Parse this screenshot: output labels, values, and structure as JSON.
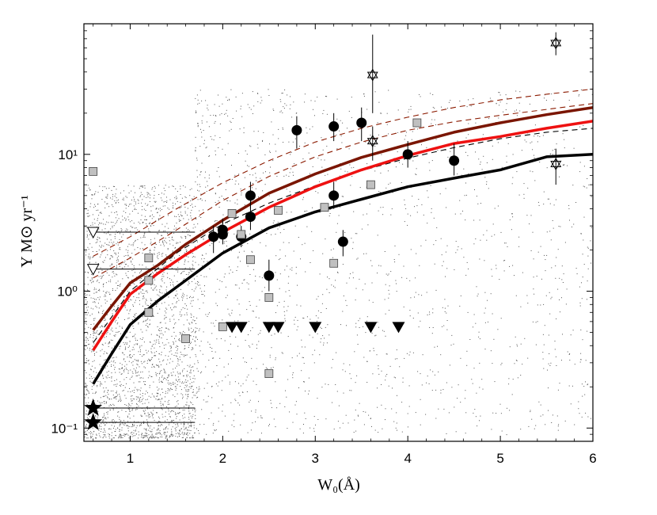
{
  "chart_data": {
    "type": "scatter",
    "title": "",
    "xlabel": "W₀(Å)",
    "ylabel": "Υ M⊙ yr⁻¹",
    "xlim": [
      0.5,
      6
    ],
    "ylim": [
      0.08,
      90
    ],
    "yscale": "log",
    "grid": false,
    "legend": "none",
    "x_ticks": [
      1,
      2,
      3,
      4,
      5,
      6
    ],
    "x_tick_labels": [
      "1",
      "2",
      "3",
      "4",
      "5",
      "6"
    ],
    "y_ticks": [
      0.1,
      1,
      10
    ],
    "y_tick_labels": [
      "10⁻¹",
      "10⁰",
      "10¹"
    ],
    "background_points": {
      "style": "gray-dots",
      "x_range": [
        0.5,
        6
      ],
      "y_range": [
        0.08,
        30
      ],
      "dense_region_x": [
        0.5,
        1.7
      ]
    },
    "series": [
      {
        "style": "black-circles-errorbars",
        "color": "#000000",
        "points": [
          {
            "x": 1.9,
            "y": 2.5,
            "ylo": 1.9,
            "yhi": 3.0
          },
          {
            "x": 2.0,
            "y": 2.6,
            "ylo": 2.2,
            "yhi": 3.2
          },
          {
            "x": 2.0,
            "y": 2.8,
            "ylo": 2.4,
            "yhi": 3.4
          },
          {
            "x": 2.2,
            "y": 2.5,
            "ylo": 2.1,
            "yhi": 3.0
          },
          {
            "x": 2.3,
            "y": 5.0,
            "ylo": 4.0,
            "yhi": 6.3
          },
          {
            "x": 2.3,
            "y": 3.5,
            "ylo": 2.8,
            "yhi": 4.5
          },
          {
            "x": 2.5,
            "y": 1.3,
            "ylo": 1.0,
            "yhi": 1.7
          },
          {
            "x": 2.8,
            "y": 15,
            "ylo": 11,
            "yhi": 19
          },
          {
            "x": 3.2,
            "y": 16,
            "ylo": 12.5,
            "yhi": 20
          },
          {
            "x": 3.2,
            "y": 5.0,
            "ylo": 4.0,
            "yhi": 6.3
          },
          {
            "x": 3.3,
            "y": 2.3,
            "ylo": 1.8,
            "yhi": 2.8
          },
          {
            "x": 3.5,
            "y": 17,
            "ylo": 12.5,
            "yhi": 22
          },
          {
            "x": 4.0,
            "y": 10,
            "ylo": 8,
            "yhi": 12.5
          },
          {
            "x": 4.5,
            "y": 9,
            "ylo": 7,
            "yhi": 12
          }
        ]
      },
      {
        "style": "gray-squares",
        "color": "#c0c0c0",
        "points": [
          {
            "x": 0.6,
            "y": 7.5
          },
          {
            "x": 1.2,
            "y": 1.75
          },
          {
            "x": 1.2,
            "y": 1.2
          },
          {
            "x": 1.2,
            "y": 0.7
          },
          {
            "x": 1.6,
            "y": 0.45
          },
          {
            "x": 2.0,
            "y": 0.55
          },
          {
            "x": 2.1,
            "y": 3.7
          },
          {
            "x": 2.2,
            "y": 2.6
          },
          {
            "x": 2.3,
            "y": 1.7
          },
          {
            "x": 2.5,
            "y": 0.9
          },
          {
            "x": 2.5,
            "y": 0.25
          },
          {
            "x": 2.6,
            "y": 3.9
          },
          {
            "x": 3.1,
            "y": 4.1
          },
          {
            "x": 3.2,
            "y": 1.6
          },
          {
            "x": 3.6,
            "y": 6.0
          },
          {
            "x": 4.1,
            "y": 17
          }
        ]
      },
      {
        "style": "open-down-triangles-with-range",
        "color": "#000000",
        "points": [
          {
            "x": 0.6,
            "y": 2.7,
            "x_end": 1.7
          },
          {
            "x": 0.6,
            "y": 1.45,
            "x_end": 1.7
          }
        ]
      },
      {
        "style": "filled-down-triangles",
        "color": "#000000",
        "points": [
          {
            "x": 2.1,
            "y": 0.55
          },
          {
            "x": 2.2,
            "y": 0.55
          },
          {
            "x": 2.5,
            "y": 0.55
          },
          {
            "x": 2.6,
            "y": 0.55
          },
          {
            "x": 3.0,
            "y": 0.55
          },
          {
            "x": 3.6,
            "y": 0.55
          },
          {
            "x": 3.9,
            "y": 0.55
          }
        ]
      },
      {
        "style": "filled-stars-with-range",
        "color": "#000000",
        "points": [
          {
            "x": 0.6,
            "y": 0.14,
            "x_end": 1.7
          },
          {
            "x": 0.6,
            "y": 0.11,
            "x_end": 1.7
          }
        ]
      },
      {
        "style": "open-hexagram-errorbars",
        "color": "#000000",
        "points": [
          {
            "x": 3.62,
            "y": 38,
            "ylo": 20,
            "yhi": 75
          },
          {
            "x": 3.62,
            "y": 12.5,
            "ylo": 9,
            "yhi": 16
          },
          {
            "x": 5.6,
            "y": 65,
            "ylo": 53,
            "yhi": 78
          },
          {
            "x": 5.6,
            "y": 8.5,
            "ylo": 6,
            "yhi": 11
          }
        ]
      }
    ],
    "curves": [
      {
        "style": "thick-solid",
        "color": "#000000",
        "width": 3.5,
        "points": [
          [
            0.6,
            0.21
          ],
          [
            0.8,
            0.35
          ],
          [
            1.0,
            0.57
          ],
          [
            1.3,
            0.85
          ],
          [
            1.6,
            1.2
          ],
          [
            2.0,
            1.9
          ],
          [
            2.5,
            2.9
          ],
          [
            3.0,
            3.8
          ],
          [
            3.5,
            4.7
          ],
          [
            4.0,
            5.8
          ],
          [
            4.5,
            6.7
          ],
          [
            5.0,
            7.7
          ],
          [
            5.5,
            9.6
          ],
          [
            6.0,
            10
          ]
        ]
      },
      {
        "style": "thick-solid",
        "color": "#ee1111",
        "width": 3.5,
        "points": [
          [
            0.6,
            0.37
          ],
          [
            0.8,
            0.6
          ],
          [
            1.0,
            0.95
          ],
          [
            1.3,
            1.35
          ],
          [
            1.6,
            1.85
          ],
          [
            2.0,
            2.7
          ],
          [
            2.5,
            4.1
          ],
          [
            3.0,
            5.8
          ],
          [
            3.5,
            7.7
          ],
          [
            4.0,
            9.8
          ],
          [
            4.5,
            12
          ],
          [
            5.0,
            13.5
          ],
          [
            5.5,
            15.5
          ],
          [
            6.0,
            17.5
          ]
        ]
      },
      {
        "style": "thick-solid",
        "color": "#7a1500",
        "width": 3.5,
        "points": [
          [
            0.6,
            0.52
          ],
          [
            0.8,
            0.78
          ],
          [
            1.0,
            1.15
          ],
          [
            1.3,
            1.55
          ],
          [
            1.6,
            2.2
          ],
          [
            2.0,
            3.3
          ],
          [
            2.5,
            5.2
          ],
          [
            3.0,
            7.2
          ],
          [
            3.5,
            9.5
          ],
          [
            4.0,
            11.8
          ],
          [
            4.5,
            14.5
          ],
          [
            5.0,
            17
          ],
          [
            5.5,
            19.5
          ],
          [
            6.0,
            22
          ]
        ]
      },
      {
        "style": "thin-dashed",
        "color": "#000000",
        "width": 1.1,
        "points": [
          [
            0.6,
            0.42
          ],
          [
            1.0,
            1.0
          ],
          [
            1.5,
            1.9
          ],
          [
            2.0,
            3.1
          ],
          [
            2.5,
            4.4
          ],
          [
            3.0,
            5.9
          ],
          [
            3.5,
            7.6
          ],
          [
            4.0,
            9.4
          ],
          [
            4.5,
            11.2
          ],
          [
            5.0,
            13
          ],
          [
            5.5,
            14.5
          ],
          [
            6.0,
            15.5
          ]
        ]
      },
      {
        "style": "thin-dashed",
        "color": "#8b1a00",
        "width": 1.1,
        "points": [
          [
            0.6,
            1.25
          ],
          [
            1.0,
            1.75
          ],
          [
            1.5,
            2.8
          ],
          [
            2.0,
            4.6
          ],
          [
            2.5,
            6.9
          ],
          [
            3.0,
            9.6
          ],
          [
            3.5,
            12.3
          ],
          [
            4.0,
            15
          ],
          [
            4.5,
            17.3
          ],
          [
            5.0,
            19.3
          ],
          [
            5.5,
            21.3
          ],
          [
            6.0,
            23.5
          ]
        ]
      },
      {
        "style": "thin-dashed",
        "color": "#8b1a00",
        "width": 1.1,
        "points": [
          [
            0.6,
            1.8
          ],
          [
            1.0,
            2.5
          ],
          [
            1.5,
            4.0
          ],
          [
            2.0,
            6.2
          ],
          [
            2.5,
            9.0
          ],
          [
            3.0,
            12.3
          ],
          [
            3.5,
            15.5
          ],
          [
            4.0,
            18.7
          ],
          [
            4.5,
            22
          ],
          [
            5.0,
            25
          ],
          [
            5.5,
            27.5
          ],
          [
            6.0,
            30
          ]
        ]
      }
    ]
  }
}
